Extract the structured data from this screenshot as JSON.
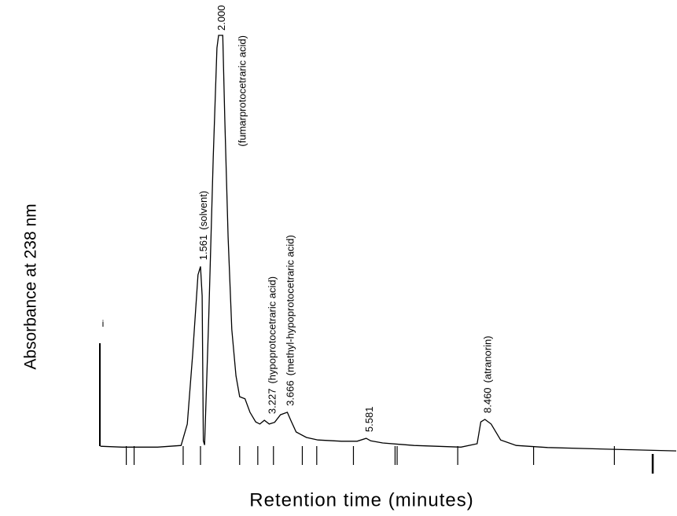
{
  "chart_data": {
    "type": "line",
    "y_label": "Absorbance at 238 nm",
    "x_label": "Retention time (minutes)",
    "xlim": [
      -0.9,
      13.1
    ],
    "ylim": [
      0,
      100
    ],
    "color": "#000000",
    "x": [
      -0.87,
      -0.34,
      0.52,
      1.09,
      1.24,
      1.37,
      1.5,
      1.56,
      1.6,
      1.63,
      1.66,
      1.76,
      1.87,
      1.96,
      2.0,
      2.1,
      2.15,
      2.23,
      2.32,
      2.42,
      2.51,
      2.64,
      2.76,
      2.9,
      3.0,
      3.11,
      3.227,
      3.36,
      3.5,
      3.666,
      3.75,
      3.88,
      4.13,
      4.41,
      4.98,
      5.36,
      5.58,
      5.69,
      5.98,
      6.74,
      7.88,
      8.27,
      8.36,
      8.46,
      8.61,
      8.84,
      9.22,
      9.98,
      11.5,
      13.1
    ],
    "values": [
      2.2,
      2.0,
      2.0,
      2.4,
      7.5,
      24,
      43,
      45,
      38,
      3.5,
      2.5,
      33,
      71,
      97,
      100,
      100,
      80,
      52,
      30,
      19,
      14,
      13.5,
      10.3,
      8,
      7.5,
      8.4,
      7.5,
      7.9,
      9.7,
      10.3,
      8.4,
      5.6,
      4.3,
      3.7,
      3.4,
      3.4,
      4.1,
      3.5,
      3.0,
      2.4,
      2.0,
      2.8,
      8.0,
      8.6,
      7.5,
      3.7,
      2.4,
      1.9,
      1.5,
      1.1
    ],
    "peaks": {
      "x": [
        1.561,
        2.0,
        3.227,
        3.666,
        5.581,
        8.46
      ],
      "value_labels": [
        "1.561",
        "2.000",
        "3.227",
        "3.666",
        "5.581",
        "8.460"
      ],
      "names": [
        "(solvent)",
        "(fumarprotocetraric acid)",
        "(hypoprotocetraric acid)",
        "(methyl-hypoprotocetraric acid)",
        null,
        "(atranorin)"
      ]
    },
    "markers": [
      -0.24,
      -0.05,
      1.14,
      1.56,
      2.51,
      2.95,
      3.33,
      4.03,
      4.38,
      5.27,
      6.28,
      6.33,
      7.8,
      9.64,
      11.6,
      12.53
    ],
    "injection_label": "i"
  }
}
